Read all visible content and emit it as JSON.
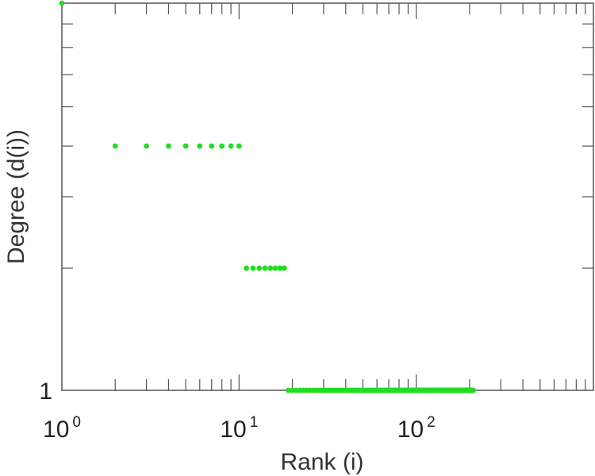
{
  "chart_data": {
    "type": "scatter",
    "title": "",
    "xlabel": "Rank (i)",
    "ylabel": "Degree (d(i))",
    "x_scale": "log",
    "y_scale": "log",
    "xlim": [
      1,
      1000
    ],
    "ylim": [
      1,
      9
    ],
    "grid": false,
    "legend": "none",
    "marker_color": "#22dd22",
    "x_tick_labels": [
      {
        "base": "10",
        "exp": "0",
        "value": 1
      },
      {
        "base": "10",
        "exp": "1",
        "value": 10
      },
      {
        "base": "10",
        "exp": "2",
        "value": 100
      }
    ],
    "y_tick_labels": [
      {
        "text": "1",
        "value": 1
      }
    ],
    "series": [
      {
        "points": [
          {
            "x": 1,
            "y": 9
          },
          {
            "x": 2,
            "y": 4
          },
          {
            "x": 3,
            "y": 4
          },
          {
            "x": 4,
            "y": 4
          },
          {
            "x": 5,
            "y": 4
          },
          {
            "x": 6,
            "y": 4
          },
          {
            "x": 7,
            "y": 4
          },
          {
            "x": 8,
            "y": 4
          },
          {
            "x": 9,
            "y": 4
          },
          {
            "x": 10,
            "y": 4
          },
          {
            "x": 11,
            "y": 2
          },
          {
            "x": 12,
            "y": 2
          },
          {
            "x": 13,
            "y": 2
          },
          {
            "x": 14,
            "y": 2
          },
          {
            "x": 15,
            "y": 2
          },
          {
            "x": 16,
            "y": 2
          },
          {
            "x": 17,
            "y": 2
          },
          {
            "x": 18,
            "y": 2
          }
        ],
        "range_points": {
          "x_from": 19,
          "x_to": 210,
          "y": 1
        }
      }
    ]
  }
}
